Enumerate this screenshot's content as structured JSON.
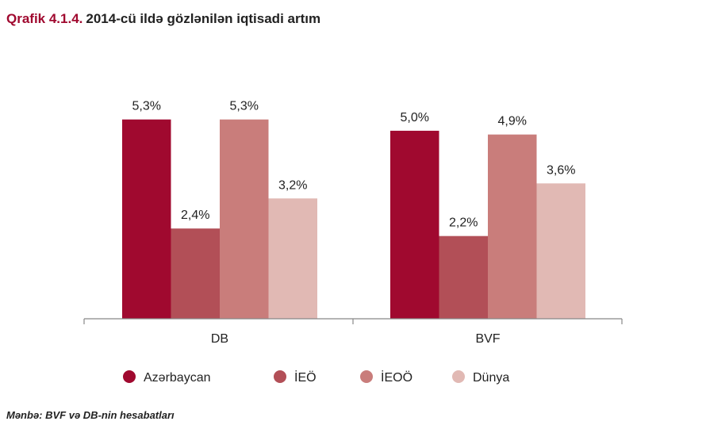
{
  "title_prefix": "Qrafik 4.1.4.",
  "title_text": "2014-cü ildə gözlənilən iqtisadi artım",
  "source": "Mənbə: BVF və DB-nin hesabatları",
  "colors": {
    "title_accent": "#a0092f",
    "series": [
      "#a0092f",
      "#b24f57",
      "#c97d7b",
      "#e1b9b4"
    ],
    "axis": "#888888"
  },
  "chart_data": {
    "type": "bar",
    "title": "2014-cü ildə gözlənilən iqtisadi artım",
    "categories": [
      "DB",
      "BVF"
    ],
    "series": [
      {
        "name": "Azərbaycan",
        "values": [
          5.3,
          5.0
        ],
        "labels": [
          "5,3%",
          "5,0%"
        ]
      },
      {
        "name": "İEÖ",
        "values": [
          2.4,
          2.2
        ],
        "labels": [
          "2,4%",
          "2,2%"
        ]
      },
      {
        "name": "İEOÖ",
        "values": [
          5.3,
          4.9
        ],
        "labels": [
          "5,3%",
          "4,9%"
        ]
      },
      {
        "name": "Dünya",
        "values": [
          3.2,
          3.6
        ],
        "labels": [
          "3,2%",
          "3,6%"
        ]
      }
    ],
    "unit": "%",
    "ylim": [
      0,
      6.2
    ],
    "grid": false,
    "legend": "bottom"
  }
}
